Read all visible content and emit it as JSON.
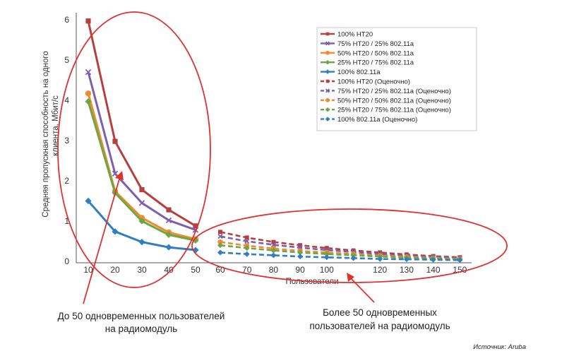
{
  "chart_data": {
    "type": "line",
    "xlabel": "Пользователи",
    "ylabel_line1": "Средняя пропускная способность на одного",
    "ylabel_line2": "клиента, Мбит/с",
    "ylim": [
      0,
      6
    ],
    "yticks": [
      0,
      1,
      2,
      3,
      4,
      5,
      6
    ],
    "xticks": [
      10,
      20,
      30,
      40,
      50,
      60,
      70,
      80,
      90,
      100,
      120,
      130,
      140,
      150
    ],
    "grid": false,
    "legend_position": "top-right",
    "series": [
      {
        "name": "100% HT20",
        "color": "#b5403d",
        "dashed": false,
        "marker": "square",
        "x": [
          10,
          20,
          30,
          40,
          50
        ],
        "y": [
          5.97,
          2.98,
          1.78,
          1.28,
          0.88
        ]
      },
      {
        "name": "75% HT20 / 25% 802.11a",
        "color": "#7d5fae",
        "dashed": false,
        "marker": "x",
        "x": [
          10,
          20,
          30,
          40,
          50
        ],
        "y": [
          4.7,
          2.18,
          1.45,
          1.02,
          0.78
        ]
      },
      {
        "name": "50% HT20 / 50% 802.11a",
        "color": "#f08c2d",
        "dashed": false,
        "marker": "circle",
        "x": [
          10,
          20,
          30,
          40,
          50
        ],
        "y": [
          4.17,
          1.74,
          1.08,
          0.72,
          0.55
        ]
      },
      {
        "name": "25% HT20 / 75% 802.11a",
        "color": "#6fa544",
        "dashed": false,
        "marker": "diamond",
        "x": [
          10,
          20,
          30,
          40,
          50
        ],
        "y": [
          3.97,
          1.7,
          1.0,
          0.66,
          0.52
        ]
      },
      {
        "name": "100% 802.11a",
        "color": "#2f7fc1",
        "dashed": false,
        "marker": "diamond",
        "x": [
          10,
          20,
          30,
          40,
          50
        ],
        "y": [
          1.5,
          0.74,
          0.48,
          0.35,
          0.28
        ]
      },
      {
        "name": "100% HT20 (Оценочно)",
        "color": "#b5403d",
        "dashed": true,
        "marker": "square",
        "x": [
          60,
          70,
          80,
          90,
          100,
          110,
          120,
          130,
          140,
          150
        ],
        "y": [
          0.73,
          0.59,
          0.48,
          0.4,
          0.33,
          0.27,
          0.22,
          0.17,
          0.13,
          0.1
        ]
      },
      {
        "name": "75% HT20 / 25% 802.11a (Оценочно)",
        "color": "#7d5fae",
        "dashed": true,
        "marker": "x",
        "x": [
          60,
          70,
          80,
          90,
          100,
          110,
          120,
          130,
          140,
          150
        ],
        "y": [
          0.62,
          0.5,
          0.41,
          0.34,
          0.28,
          0.23,
          0.18,
          0.14,
          0.11,
          0.08
        ]
      },
      {
        "name": "50% HT20 / 50% 802.11a (Оценочно)",
        "color": "#f08c2d",
        "dashed": true,
        "marker": "circle",
        "x": [
          60,
          70,
          80,
          90,
          100,
          110,
          120,
          130,
          140,
          150
        ],
        "y": [
          0.48,
          0.39,
          0.32,
          0.26,
          0.22,
          0.18,
          0.14,
          0.11,
          0.08,
          0.06
        ]
      },
      {
        "name": "25% HT20 / 75% 802.11a (Оценочно)",
        "color": "#6fa544",
        "dashed": true,
        "marker": "diamond",
        "x": [
          60,
          70,
          80,
          90,
          100,
          110,
          120,
          130,
          140,
          150
        ],
        "y": [
          0.4,
          0.33,
          0.27,
          0.22,
          0.18,
          0.15,
          0.12,
          0.09,
          0.07,
          0.05
        ]
      },
      {
        "name": "100% 802.11a (Оценочно)",
        "color": "#2f7fc1",
        "dashed": true,
        "marker": "diamond",
        "x": [
          60,
          70,
          80,
          90,
          100,
          110,
          120,
          130,
          140,
          150
        ],
        "y": [
          0.22,
          0.18,
          0.15,
          0.12,
          0.1,
          0.08,
          0.06,
          0.05,
          0.04,
          0.03
        ]
      }
    ]
  },
  "annotations": {
    "left_line1": "До 50 одновременных пользователей",
    "left_line2": "на радиомодуль",
    "right_line1": "Более 50 одновременных",
    "right_line2": "пользователей на радиомодуль",
    "highlight_color": "#e03030"
  },
  "source": "Источник: Aruba"
}
